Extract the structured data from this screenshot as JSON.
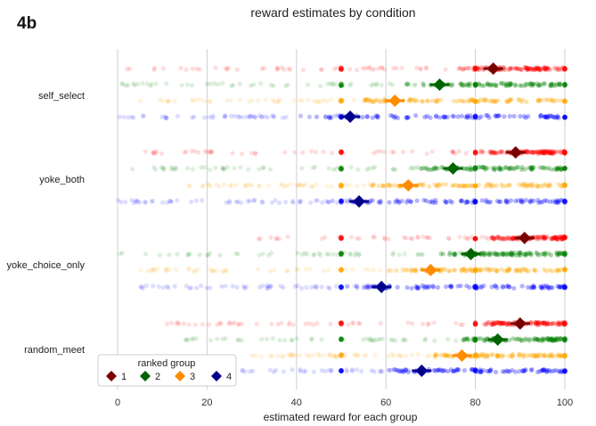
{
  "figure": {
    "panel_label": "4b"
  },
  "chart_data": {
    "type": "scatter",
    "title": "reward estimates by condition",
    "xlabel": "estimated reward for each group",
    "ylabel": "",
    "xlim": [
      0,
      100
    ],
    "xticks": [
      0,
      20,
      40,
      60,
      80,
      100
    ],
    "grid": "vertical",
    "conditions": [
      "self_select",
      "yoke_both",
      "yoke_choice_only",
      "random_meet"
    ],
    "groups": [
      {
        "name": "1",
        "color": "#ff0000",
        "mean_color": "#7a0000"
      },
      {
        "name": "2",
        "color": "#008000",
        "mean_color": "#006400"
      },
      {
        "name": "3",
        "color": "#ffa500",
        "mean_color": "#ff8c00"
      },
      {
        "name": "4",
        "color": "#0000ff",
        "mean_color": "#00008b"
      }
    ],
    "means": {
      "self_select": [
        84,
        72,
        62,
        52
      ],
      "yoke_both": [
        89,
        75,
        65,
        54
      ],
      "yoke_choice_only": [
        91,
        79,
        70,
        59
      ],
      "random_meet": [
        90,
        85,
        77,
        68
      ]
    },
    "strip_ranges": {
      "self_select": [
        [
          1,
          100
        ],
        [
          0,
          100
        ],
        [
          5,
          100
        ],
        [
          0,
          100
        ]
      ],
      "yoke_both": [
        [
          5,
          100
        ],
        [
          0,
          100
        ],
        [
          15,
          100
        ],
        [
          0,
          100
        ]
      ],
      "yoke_choice_only": [
        [
          30,
          100
        ],
        [
          0,
          100
        ],
        [
          5,
          100
        ],
        [
          0,
          100
        ]
      ],
      "random_meet": [
        [
          10,
          100
        ],
        [
          15,
          100
        ],
        [
          30,
          100
        ],
        [
          0,
          100
        ]
      ]
    },
    "legend": {
      "title": "ranked group",
      "placement": "lower-left",
      "entries": [
        "1",
        "2",
        "3",
        "4"
      ]
    }
  }
}
